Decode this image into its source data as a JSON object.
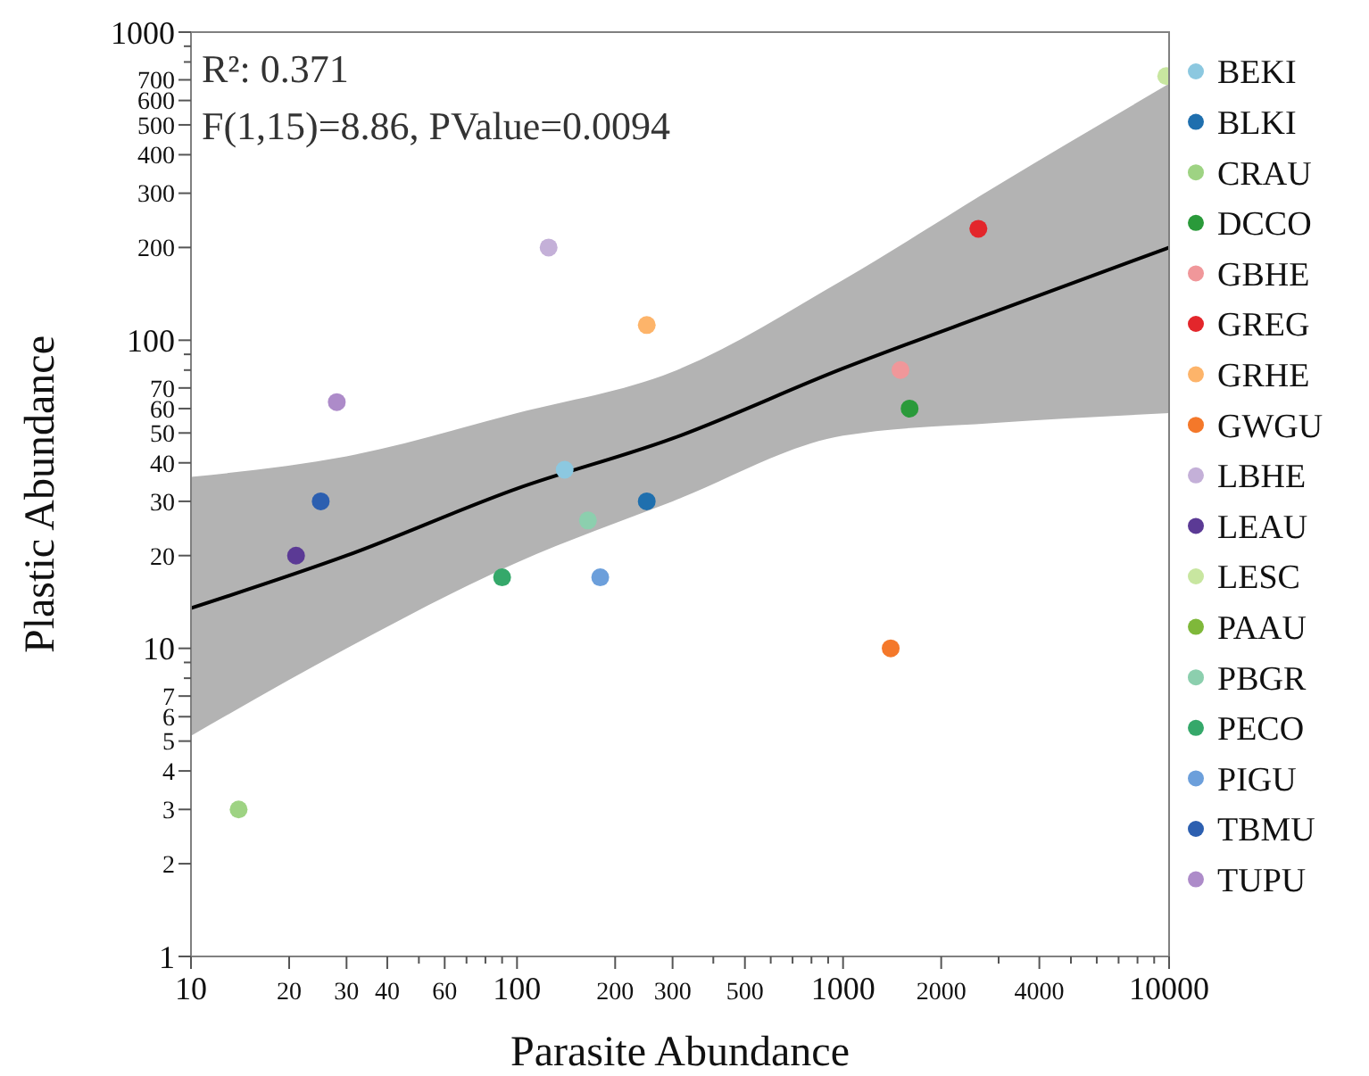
{
  "chart_data": {
    "type": "scatter",
    "xlabel": "Parasite Abundance",
    "ylabel": "Plastic Abundance",
    "log": "xy",
    "marker": "circle",
    "grid": false,
    "legend": "right",
    "xlim": [
      10,
      10000
    ],
    "ylim": [
      1,
      1000
    ],
    "xticks": [
      10,
      20,
      30,
      40,
      {
        "value": 50,
        "label": null
      },
      60,
      {
        "value": 70,
        "label": null
      },
      {
        "value": 80,
        "label": null
      },
      {
        "value": 90,
        "label": null
      },
      100,
      200,
      300,
      {
        "value": 400,
        "label": null
      },
      500,
      {
        "value": 600,
        "label": null
      },
      {
        "value": 700,
        "label": null
      },
      {
        "value": 800,
        "label": null
      },
      {
        "value": 900,
        "label": null
      },
      1000,
      2000,
      {
        "value": 3000,
        "label": null
      },
      4000,
      {
        "value": 5000,
        "label": null
      },
      {
        "value": 6000,
        "label": null
      },
      {
        "value": 7000,
        "label": null
      },
      {
        "value": 8000,
        "label": null
      },
      {
        "value": 9000,
        "label": null
      },
      10000
    ],
    "yticks": [
      1,
      2,
      3,
      4,
      5,
      6,
      7,
      {
        "value": 8,
        "label": null
      },
      {
        "value": 9,
        "label": null
      },
      10,
      20,
      30,
      40,
      50,
      60,
      70,
      {
        "value": 80,
        "label": null
      },
      {
        "value": 90,
        "label": null
      },
      100,
      200,
      300,
      400,
      500,
      600,
      700,
      {
        "value": 800,
        "label": null
      },
      {
        "value": 900,
        "label": null
      },
      1000
    ],
    "annotations": [
      "R²: 0.371",
      "F(1,15)=8.86, PValue=0.0094"
    ],
    "series": [
      {
        "type": "line",
        "marker": "none",
        "color": "#000000",
        "x": [
          10,
          30,
          100,
          300,
          1000,
          3000,
          10000
        ],
        "values": [
          13.5,
          20,
          33,
          48,
          81,
          125,
          200
        ],
        "lower": [
          5.2,
          10,
          19,
          30,
          49,
          54,
          58
        ],
        "upper": [
          36,
          42,
          58,
          79,
          157,
          320,
          680
        ]
      },
      {
        "name": "BEKI",
        "color": "#8cc8e0",
        "x": [
          140
        ],
        "values": [
          38
        ]
      },
      {
        "name": "BLKI",
        "color": "#1f6fae",
        "x": [
          250
        ],
        "values": [
          30
        ]
      },
      {
        "name": "CRAU",
        "color": "#9ed383",
        "x": [
          14
        ],
        "values": [
          3
        ]
      },
      {
        "name": "DCCO",
        "color": "#2a9a3a",
        "x": [
          1600
        ],
        "values": [
          60
        ]
      },
      {
        "name": "GBHE",
        "color": "#f0979a",
        "x": [
          1500
        ],
        "values": [
          80
        ]
      },
      {
        "name": "GREG",
        "color": "#e3262b",
        "x": [
          2600
        ],
        "values": [
          230
        ]
      },
      {
        "name": "GRHE",
        "color": "#fdb46a",
        "x": [
          250
        ],
        "values": [
          112
        ]
      },
      {
        "name": "GWGU",
        "color": "#f4782a",
        "x": [
          1400
        ],
        "values": [
          10
        ]
      },
      {
        "name": "LBHE",
        "color": "#c4b0d8",
        "x": [
          125
        ],
        "values": [
          200
        ]
      },
      {
        "name": "LEAU",
        "color": "#5b3a95",
        "x": [
          21
        ],
        "values": [
          20
        ]
      },
      {
        "name": "LESC",
        "color": "#c8e6a0",
        "x": [
          9800
        ],
        "values": [
          720
        ]
      },
      {
        "name": "PAAU",
        "color": "#7fb83a",
        "x": [
          null
        ],
        "values": [
          null
        ]
      },
      {
        "name": "PBGR",
        "color": "#8ccfae",
        "x": [
          165
        ],
        "values": [
          26
        ]
      },
      {
        "name": "PECO",
        "color": "#35a86a",
        "x": [
          90
        ],
        "values": [
          17
        ]
      },
      {
        "name": "PIGU",
        "color": "#6c9fdb",
        "x": [
          180
        ],
        "values": [
          17
        ]
      },
      {
        "name": "TBMU",
        "color": "#2c5fb0",
        "x": [
          25
        ],
        "values": [
          30
        ]
      },
      {
        "name": "TUPU",
        "color": "#ad8bc9",
        "x": [
          28
        ],
        "values": [
          63
        ]
      }
    ]
  }
}
